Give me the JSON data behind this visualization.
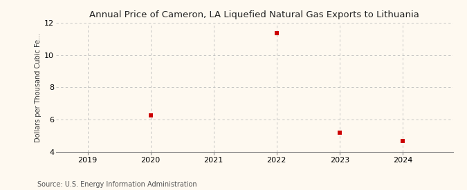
{
  "title": "Annual Price of Cameron, LA Liquefied Natural Gas Exports to Lithuania",
  "ylabel": "Dollars per Thousand Cubic Fe...",
  "source": "Source: U.S. Energy Information Administration",
  "background_color": "#fef9f0",
  "x_data": [
    2020,
    2022,
    2023,
    2024
  ],
  "y_data": [
    6.25,
    11.35,
    5.2,
    4.7
  ],
  "xlim": [
    2018.5,
    2024.8
  ],
  "ylim": [
    4,
    12
  ],
  "yticks": [
    4,
    6,
    8,
    10,
    12
  ],
  "xticks": [
    2019,
    2020,
    2021,
    2022,
    2023,
    2024
  ],
  "marker_color": "#cc0000",
  "marker_size": 5,
  "grid_color": "#bbbbbb",
  "title_fontsize": 9.5,
  "label_fontsize": 7,
  "tick_fontsize": 8,
  "source_fontsize": 7
}
